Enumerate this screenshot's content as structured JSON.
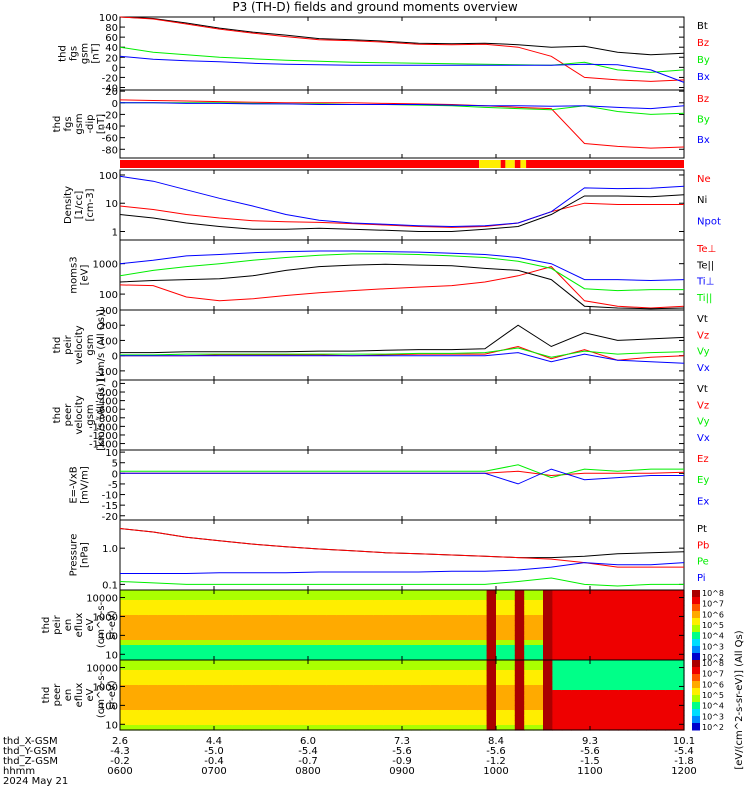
{
  "title": "P3 (TH-D) fields and ground moments overview",
  "colors": {
    "black": "#000000",
    "red": "#ff0000",
    "green": "#00ee00",
    "blue": "#0000ff",
    "yellow": "#ffee00"
  },
  "chart_data": {
    "type": "line",
    "x_axis": {
      "ticks": [
        "0600",
        "0700",
        "0800",
        "0900",
        "1000",
        "1100",
        "1200"
      ],
      "rows": [
        {
          "label": "thd_X-GSM",
          "values": [
            "2.6",
            "4.4",
            "6.0",
            "7.3",
            "8.4",
            "9.3",
            "10.1"
          ]
        },
        {
          "label": "thd_Y-GSM",
          "values": [
            "-4.3",
            "-5.0",
            "-5.4",
            "-5.6",
            "-5.6",
            "-5.6",
            "-5.4"
          ]
        },
        {
          "label": "thd_Z-GSM",
          "values": [
            "-0.2",
            "-0.4",
            "-0.7",
            "-0.9",
            "-1.2",
            "-1.5",
            "-1.8"
          ]
        },
        {
          "label": "hhmm",
          "values": [
            "0600",
            "0700",
            "0800",
            "0900",
            "1000",
            "1100",
            "1200"
          ]
        }
      ],
      "date": "2024 May 21",
      "range_hours": [
        6,
        12
      ]
    },
    "panels": [
      {
        "id": "fgs-gsm",
        "ylabel": [
          "thd",
          "fgs",
          "gsm",
          "[nT]"
        ],
        "yticks": [
          "100",
          "80",
          "60",
          "40",
          "20",
          "0",
          "-20",
          "-40"
        ],
        "ylim": [
          -45,
          100
        ],
        "series": [
          {
            "name": "Bt",
            "color": "black",
            "values": [
              100,
              97,
              88,
              78,
              70,
              64,
              57,
              55,
              52,
              48,
              47,
              48,
              45,
              40,
              42,
              30,
              25,
              28
            ]
          },
          {
            "name": "Bz",
            "color": "red",
            "values": [
              100,
              96,
              86,
              76,
              68,
              61,
              55,
              53,
              50,
              46,
              45,
              46,
              40,
              22,
              -20,
              -25,
              -28,
              -25
            ]
          },
          {
            "name": "By",
            "color": "green",
            "values": [
              40,
              30,
              25,
              20,
              17,
              14,
              12,
              10,
              9,
              8,
              7,
              6,
              5,
              4,
              10,
              -5,
              -10,
              -5
            ]
          },
          {
            "name": "Bx",
            "color": "blue",
            "values": [
              22,
              16,
              13,
              11,
              8,
              6,
              5,
              4,
              4,
              4,
              4,
              4,
              4,
              4,
              6,
              5,
              -5,
              -30
            ]
          }
        ]
      },
      {
        "id": "fgs-gsm-dip",
        "ylabel": [
          "thd",
          "fgs",
          "gsm",
          "-dip",
          "[nT]"
        ],
        "yticks": [
          "20",
          "0",
          "-20",
          "-40",
          "-60",
          "-80"
        ],
        "ylim": [
          -95,
          22
        ],
        "series": [
          {
            "name": "Bz",
            "color": "red",
            "values": [
              5,
              4,
              3,
              2,
              1,
              0,
              0,
              0,
              -1,
              -2,
              -3,
              -5,
              -8,
              -10,
              -70,
              -75,
              -78,
              -76
            ]
          },
          {
            "name": "By",
            "color": "green",
            "values": [
              0,
              0,
              0,
              0,
              -1,
              -2,
              -2,
              -3,
              -3,
              -4,
              -5,
              -8,
              -10,
              -12,
              -5,
              -15,
              -20,
              -18
            ]
          },
          {
            "name": "Bx",
            "color": "blue",
            "values": [
              0,
              0,
              -1,
              -1,
              -2,
              -2,
              -3,
              -3,
              -3,
              -3,
              -4,
              -5,
              -5,
              -6,
              -5,
              -8,
              -10,
              -5
            ]
          }
        ]
      },
      {
        "id": "mode-bar",
        "mode_segments": [
          {
            "to_hour": 9.82,
            "color": "red"
          },
          {
            "to_hour": 10.05,
            "color": "yellow"
          },
          {
            "to_hour": 10.1,
            "color": "red"
          },
          {
            "to_hour": 10.2,
            "color": "yellow"
          },
          {
            "to_hour": 10.26,
            "color": "red"
          },
          {
            "to_hour": 10.32,
            "color": "yellow"
          },
          {
            "to_hour": 12,
            "color": "red"
          }
        ]
      },
      {
        "id": "density",
        "ylabel": [
          "Density",
          "[1/cc]",
          "[cm-3]"
        ],
        "yticks": [
          "100",
          "10",
          "1"
        ],
        "ylim": [
          0.5,
          150
        ],
        "log": true,
        "series": [
          {
            "name": "Ne",
            "color": "red",
            "values": [
              8,
              6,
              4,
              3,
              2.4,
              2.2,
              2.1,
              1.9,
              1.7,
              1.5,
              1.4,
              1.5,
              2,
              5,
              10,
              9,
              9,
              9
            ]
          },
          {
            "name": "Ni",
            "color": "black",
            "values": [
              4,
              3,
              2,
              1.5,
              1.2,
              1.2,
              1.3,
              1.2,
              1.1,
              1,
              1,
              1.2,
              1.5,
              4,
              18,
              18,
              17,
              20
            ]
          },
          {
            "name": "Npot",
            "color": "blue",
            "values": [
              90,
              60,
              30,
              15,
              8,
              4,
              2.5,
              2,
              1.8,
              1.6,
              1.5,
              1.6,
              2,
              5,
              35,
              33,
              34,
              40
            ]
          }
        ]
      },
      {
        "id": "temp",
        "ylabel": [
          "moms3",
          "[eV]"
        ],
        "yticks": [
          "1000",
          "100"
        ],
        "ylim": [
          30,
          6000
        ],
        "log": true,
        "series": [
          {
            "name": "Te⊥",
            "color": "red",
            "values": [
              200,
              190,
              80,
              60,
              70,
              90,
              110,
              130,
              150,
              170,
              190,
              250,
              400,
              800,
              60,
              40,
              35,
              40
            ]
          },
          {
            "name": "Te||",
            "color": "black",
            "values": [
              250,
              280,
              300,
              320,
              400,
              600,
              800,
              900,
              950,
              900,
              850,
              700,
              600,
              300,
              40,
              35,
              33,
              35
            ]
          },
          {
            "name": "Ti⊥",
            "color": "blue",
            "values": [
              1000,
              1300,
              1800,
              2000,
              2300,
              2500,
              2600,
              2600,
              2500,
              2400,
              2200,
              2000,
              1600,
              1000,
              300,
              300,
              280,
              300
            ]
          },
          {
            "name": "Ti||",
            "color": "green",
            "values": [
              400,
              600,
              800,
              1000,
              1300,
              1600,
              1900,
              2100,
              2100,
              2000,
              1800,
              1600,
              1200,
              700,
              150,
              130,
              140,
              140
            ]
          }
        ]
      },
      {
        "id": "peir-velocity",
        "ylabel": [
          "thd",
          "peir",
          "velocity",
          "gsm",
          "[km/s (All Qs)]"
        ],
        "yticks": [
          "300",
          "200",
          "100",
          "0",
          "-100"
        ],
        "ylim": [
          -160,
          300
        ],
        "series": [
          {
            "name": "Vt",
            "color": "black",
            "values": [
              20,
              20,
              25,
              25,
              25,
              25,
              30,
              30,
              35,
              40,
              40,
              45,
              200,
              60,
              150,
              100,
              110,
              120
            ]
          },
          {
            "name": "Vz",
            "color": "red",
            "values": [
              0,
              0,
              0,
              5,
              5,
              5,
              5,
              0,
              5,
              10,
              10,
              10,
              60,
              -20,
              40,
              -30,
              -10,
              0
            ]
          },
          {
            "name": "Vy",
            "color": "green",
            "values": [
              5,
              5,
              10,
              10,
              10,
              10,
              10,
              10,
              10,
              15,
              15,
              20,
              50,
              -10,
              30,
              10,
              20,
              25
            ]
          },
          {
            "name": "Vx",
            "color": "blue",
            "values": [
              0,
              0,
              0,
              0,
              0,
              0,
              0,
              0,
              0,
              0,
              0,
              0,
              20,
              -40,
              10,
              -30,
              -40,
              -50
            ]
          }
        ]
      },
      {
        "id": "peer-velocity",
        "ylabel": [
          "thd",
          "peer",
          "velocity",
          "gsm",
          "[km/s (All Qs)]"
        ],
        "yticks": [
          "0",
          "-200",
          "-400",
          "-600",
          "-800",
          "-1000",
          "-1200",
          "-1400"
        ],
        "ylim": [
          -1550,
          80
        ],
        "series": [
          {
            "name": "Vt",
            "color": "black",
            "values": []
          },
          {
            "name": "Vz",
            "color": "red",
            "values": []
          },
          {
            "name": "Vy",
            "color": "green",
            "values": []
          },
          {
            "name": "Vx",
            "color": "blue",
            "values": []
          }
        ]
      },
      {
        "id": "efield",
        "ylabel": [
          "E=-VxB",
          "[mV/m]"
        ],
        "yticks": [
          "10",
          "5",
          "0",
          "-5",
          "-10",
          "-15",
          "-20"
        ],
        "ylim": [
          -22,
          11
        ],
        "series": [
          {
            "name": "Ez",
            "color": "red",
            "values": [
              0,
              0,
              0,
              0,
              0,
              0,
              0,
              0,
              0,
              0,
              0,
              0,
              1,
              -1,
              0,
              0,
              0,
              0.5
            ]
          },
          {
            "name": "Ey",
            "color": "green",
            "values": [
              1,
              1,
              1,
              1,
              1,
              1,
              1,
              1,
              1,
              1,
              1,
              1,
              4,
              -2,
              2,
              1,
              2,
              2
            ]
          },
          {
            "name": "Ex",
            "color": "blue",
            "values": [
              0,
              0,
              0,
              0,
              0,
              0,
              0,
              0,
              0,
              0,
              0,
              0,
              -5,
              2,
              -3,
              -2,
              -1,
              -1
            ]
          }
        ]
      },
      {
        "id": "pressure",
        "ylabel": [
          "Pressure",
          "[nPa]"
        ],
        "yticks": [
          "1.0",
          "0.1"
        ],
        "ylim": [
          0.07,
          6
        ],
        "log": true,
        "series": [
          {
            "name": "Pt",
            "color": "black",
            "values": [
              3.5,
              2.8,
              2,
              1.6,
              1.3,
              1.1,
              0.95,
              0.85,
              0.75,
              0.7,
              0.65,
              0.6,
              0.55,
              0.55,
              0.6,
              0.7,
              0.75,
              0.8
            ]
          },
          {
            "name": "Pb",
            "color": "red",
            "values": [
              3.5,
              2.8,
              2,
              1.6,
              1.3,
              1.1,
              0.95,
              0.85,
              0.75,
              0.7,
              0.65,
              0.6,
              0.55,
              0.5,
              0.4,
              0.3,
              0.3,
              0.3
            ]
          },
          {
            "name": "Pe",
            "color": "green",
            "values": [
              0.12,
              0.11,
              0.1,
              0.1,
              0.1,
              0.1,
              0.1,
              0.1,
              0.1,
              0.1,
              0.1,
              0.1,
              0.12,
              0.15,
              0.1,
              0.09,
              0.1,
              0.1
            ]
          },
          {
            "name": "Pi",
            "color": "blue",
            "values": [
              0.2,
              0.2,
              0.2,
              0.21,
              0.21,
              0.21,
              0.22,
              0.22,
              0.22,
              0.22,
              0.23,
              0.23,
              0.25,
              0.3,
              0.4,
              0.35,
              0.35,
              0.4
            ]
          }
        ]
      },
      {
        "id": "peir-spectrogram",
        "type": "heatmap",
        "ylabel": [
          "thd",
          "peir",
          "en",
          "eflux",
          "eV",
          "(cm^2-s-",
          "sr-eV)"
        ],
        "yticks": [
          "10000",
          "1000",
          "100",
          "10"
        ],
        "ylim": [
          5,
          25000
        ],
        "log": true,
        "colorbar": {
          "label": "[eV/(cm^2-s-sr-eV)] (All Qs)",
          "ticks": [
            "10^8",
            "10^7",
            "10^6",
            "10^5",
            "10^4",
            "10^3",
            "10^2"
          ]
        }
      },
      {
        "id": "peer-spectrogram",
        "type": "heatmap",
        "ylabel": [
          "thd",
          "peer",
          "en",
          "eflux",
          "eV",
          "(cm^2-s-",
          "sr-eV)"
        ],
        "yticks": [
          "10000",
          "1000",
          "100",
          "10"
        ],
        "ylim": [
          5,
          25000
        ],
        "log": true,
        "colorbar": {
          "label": "[eV/(cm^2-s-sr-eV)] (All Qs)",
          "ticks": [
            "10^8",
            "10^7",
            "10^6",
            "10^5",
            "10^4",
            "10^3",
            "10^2"
          ]
        }
      }
    ]
  }
}
